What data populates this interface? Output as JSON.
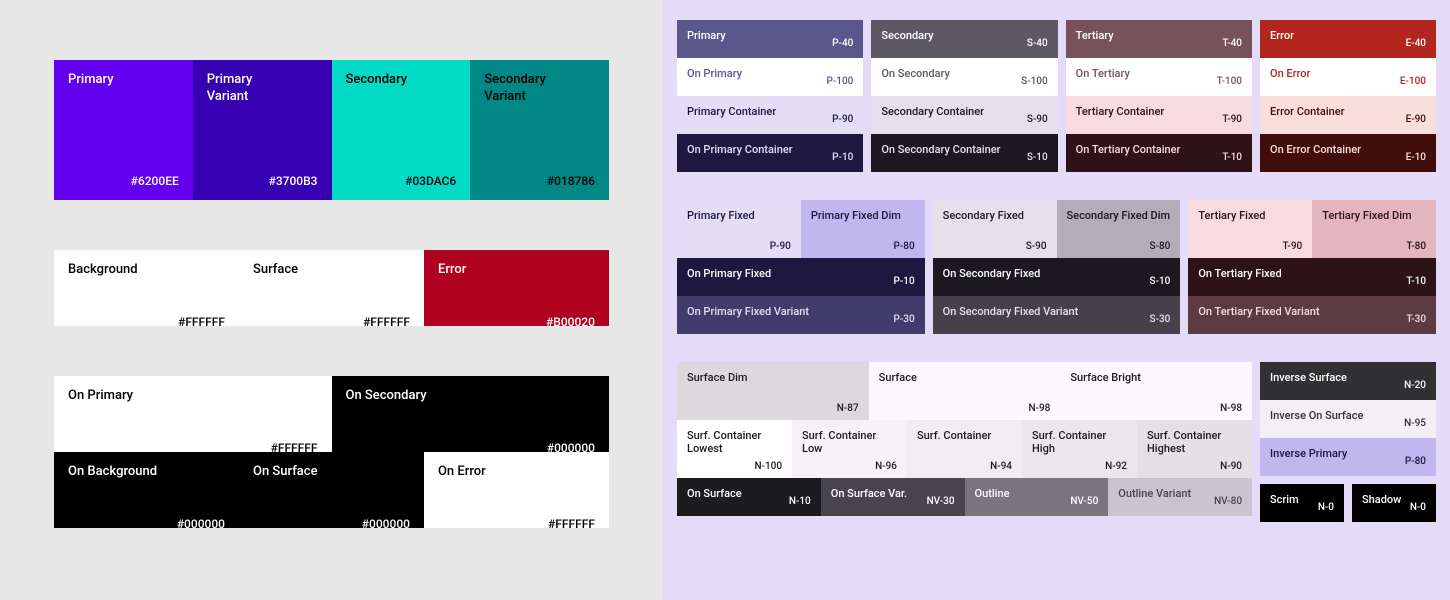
{
  "left": {
    "row1": [
      {
        "label": "Primary",
        "code": "#6200EE",
        "bg": "#6200ee",
        "fg": "#ffffff"
      },
      {
        "label": "Primary\nVariant",
        "code": "#3700B3",
        "bg": "#3700b3",
        "fg": "#ffffff"
      },
      {
        "label": "Secondary",
        "code": "#03DAC6",
        "bg": "#03dac6",
        "fg": "#000000"
      },
      {
        "label": "Secondary\nVariant",
        "code": "#018786",
        "bg": "#018786",
        "fg": "#000000"
      }
    ],
    "row2": [
      {
        "label": "Background",
        "code": "#FFFFFF",
        "bg": "#ffffff",
        "fg": "#000000"
      },
      {
        "label": "Surface",
        "code": "#FFFFFF",
        "bg": "#ffffff",
        "fg": "#000000"
      },
      {
        "label": "Error",
        "code": "#B00020",
        "bg": "#b00020",
        "fg": "#ffffff"
      }
    ],
    "row3a": [
      {
        "label": "On Primary",
        "code": "#FFFFFF",
        "bg": "#ffffff",
        "fg": "#000000"
      },
      {
        "label": "On Secondary",
        "code": "#000000",
        "bg": "#000000",
        "fg": "#ffffff"
      }
    ],
    "row3b": [
      {
        "label": "On Background",
        "code": "#000000",
        "bg": "#000000",
        "fg": "#ffffff"
      },
      {
        "label": "On Surface",
        "code": "#000000",
        "bg": "#000000",
        "fg": "#ffffff"
      },
      {
        "label": "On Error",
        "code": "#FFFFFF",
        "bg": "#ffffff",
        "fg": "#000000"
      }
    ]
  },
  "right": {
    "tonal": {
      "primary": [
        {
          "label": "Primary",
          "token": "P-40",
          "bg": "#5b568c",
          "fg": "#ffffff"
        },
        {
          "label": "On Primary",
          "token": "P-100",
          "bg": "#ffffff",
          "fg": "#5b568c"
        },
        {
          "label": "Primary Container",
          "token": "P-90",
          "bg": "#e3ddf6",
          "fg": "#1e1740"
        },
        {
          "label": "On Primary Container",
          "token": "P-10",
          "bg": "#1e1740",
          "fg": "#e3ddf6"
        }
      ],
      "secondary": [
        {
          "label": "Secondary",
          "token": "S-40",
          "bg": "#5d5963",
          "fg": "#ffffff"
        },
        {
          "label": "On Secondary",
          "token": "S-100",
          "bg": "#ffffff",
          "fg": "#5d5963"
        },
        {
          "label": "Secondary Container",
          "token": "S-90",
          "bg": "#e6e0eb",
          "fg": "#1b181f"
        },
        {
          "label": "On Secondary Container",
          "token": "S-10",
          "bg": "#1b181f",
          "fg": "#e6e0eb"
        }
      ],
      "tertiary": [
        {
          "label": "Tertiary",
          "token": "T-40",
          "bg": "#77525a",
          "fg": "#ffffff"
        },
        {
          "label": "On Tertiary",
          "token": "T-100",
          "bg": "#ffffff",
          "fg": "#77525a"
        },
        {
          "label": "Tertiary Container",
          "token": "T-90",
          "bg": "#f7dbe0",
          "fg": "#2d1218"
        },
        {
          "label": "On Tertiary Container",
          "token": "T-10",
          "bg": "#2d1218",
          "fg": "#f7dbe0"
        }
      ],
      "error": [
        {
          "label": "Error",
          "token": "E-40",
          "bg": "#b3261e",
          "fg": "#ffffff"
        },
        {
          "label": "On Error",
          "token": "E-100",
          "bg": "#ffffff",
          "fg": "#b3261e"
        },
        {
          "label": "Error Container",
          "token": "E-90",
          "bg": "#f9dedc",
          "fg": "#410e0b"
        },
        {
          "label": "On Error Container",
          "token": "E-10",
          "bg": "#410e0b",
          "fg": "#f9dedc"
        }
      ]
    },
    "fixed": {
      "primary": {
        "top": [
          {
            "label": "Primary Fixed",
            "token": "P-90",
            "bg": "#e3ddf6",
            "fg": "#1e1740"
          },
          {
            "label": "Primary Fixed Dim",
            "token": "P-80",
            "bg": "#c0b7f0",
            "fg": "#1e1740"
          }
        ],
        "bottom": [
          {
            "label": "On Primary Fixed",
            "token": "P-10",
            "bg": "#1e1740",
            "fg": "#ffffff"
          },
          {
            "label": "On Primary Fixed Variant",
            "token": "P-30",
            "bg": "#423c6b",
            "fg": "#e3ddf6"
          }
        ]
      },
      "secondary": {
        "top": [
          {
            "label": "Secondary Fixed",
            "token": "S-90",
            "bg": "#e6e0eb",
            "fg": "#1b181f"
          },
          {
            "label": "Secondary Fixed Dim",
            "token": "S-80",
            "bg": "#b2adb8",
            "fg": "#1b181f"
          }
        ],
        "bottom": [
          {
            "label": "On Secondary Fixed",
            "token": "S-10",
            "bg": "#1b181f",
            "fg": "#ffffff"
          },
          {
            "label": "On Secondary Fixed Variant",
            "token": "S-30",
            "bg": "#454049",
            "fg": "#e6e0eb"
          }
        ]
      },
      "tertiary": {
        "top": [
          {
            "label": "Tertiary Fixed",
            "token": "T-90",
            "bg": "#f7dbe0",
            "fg": "#2d1218"
          },
          {
            "label": "Tertiary Fixed Dim",
            "token": "T-80",
            "bg": "#e3b5bd",
            "fg": "#2d1218"
          }
        ],
        "bottom": [
          {
            "label": "On Tertiary Fixed",
            "token": "T-10",
            "bg": "#2d1218",
            "fg": "#ffffff"
          },
          {
            "label": "On Tertiary Fixed Variant",
            "token": "T-30",
            "bg": "#5c3b42",
            "fg": "#f7dbe0"
          }
        ]
      }
    },
    "surfaces": {
      "row1": [
        {
          "label": "Surface Dim",
          "token": "N-87",
          "bg": "#ddd8dd",
          "fg": "#1c1b1f"
        },
        {
          "label": "Surface",
          "token": "N-98",
          "bg": "#fdf8fd",
          "fg": "#1c1b1f"
        },
        {
          "label": "Surface Bright",
          "token": "N-98",
          "bg": "#fdf8fd",
          "fg": "#1c1b1f"
        }
      ],
      "row2": [
        {
          "label": "Surf. Container Lowest",
          "token": "N-100",
          "bg": "#ffffff",
          "fg": "#1c1b1f"
        },
        {
          "label": "Surf. Container Low",
          "token": "N-96",
          "bg": "#f7f2f7",
          "fg": "#1c1b1f"
        },
        {
          "label": "Surf. Container",
          "token": "N-94",
          "bg": "#f1ecf1",
          "fg": "#1c1b1f"
        },
        {
          "label": "Surf. Container High",
          "token": "N-92",
          "bg": "#ebe6eb",
          "fg": "#1c1b1f"
        },
        {
          "label": "Surf. Container Highest",
          "token": "N-90",
          "bg": "#e5e0e5",
          "fg": "#1c1b1f"
        }
      ],
      "row3": [
        {
          "label": "On Surface",
          "token": "N-10",
          "bg": "#1c1b1f",
          "fg": "#ffffff"
        },
        {
          "label": "On Surface Var.",
          "token": "NV-30",
          "bg": "#49454f",
          "fg": "#ffffff"
        },
        {
          "label": "Outline",
          "token": "NV-50",
          "bg": "#79747e",
          "fg": "#ffffff"
        },
        {
          "label": "Outline Variant",
          "token": "NV-80",
          "bg": "#cac4d0",
          "fg": "#49454f"
        }
      ]
    },
    "inverse": [
      {
        "label": "Inverse Surface",
        "token": "N-20",
        "bg": "#313033",
        "fg": "#ffffff"
      },
      {
        "label": "Inverse On Surface",
        "token": "N-95",
        "bg": "#f4eff4",
        "fg": "#313033"
      },
      {
        "label": "Inverse Primary",
        "token": "P-80",
        "bg": "#c0b7f0",
        "fg": "#1e1740"
      }
    ],
    "scrim": [
      {
        "label": "Scrim",
        "token": "N-0",
        "bg": "#000000",
        "fg": "#ffffff"
      },
      {
        "label": "Shadow",
        "token": "N-0",
        "bg": "#000000",
        "fg": "#ffffff"
      }
    ]
  }
}
